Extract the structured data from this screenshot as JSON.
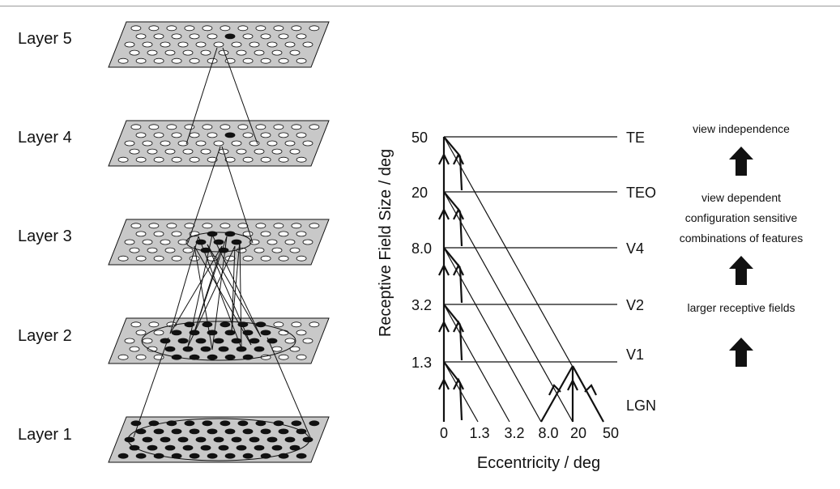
{
  "layers": [
    {
      "label": "Layer 5"
    },
    {
      "label": "Layer 4"
    },
    {
      "label": "Layer 3"
    },
    {
      "label": "Layer 2"
    },
    {
      "label": "Layer 1"
    }
  ],
  "hierarchy": {
    "y_axis_title": "Receptive Field Size / deg",
    "x_axis_title": "Eccentricity / deg",
    "y_ticks": [
      "50",
      "20",
      "8.0",
      "3.2",
      "1.3"
    ],
    "x_ticks": [
      "0",
      "1.3",
      "3.2",
      "8.0",
      "20",
      "50"
    ],
    "areas": [
      "TE",
      "TEO",
      "V4",
      "V2",
      "V1",
      "LGN"
    ]
  },
  "annotations": {
    "top": "view independence",
    "middle": [
      "view dependent",
      "configuration sensitive",
      "combinations of features"
    ],
    "bottom": "larger receptive fields"
  },
  "colors": {
    "plate_fill": "#c8c8c8",
    "ink": "#111111"
  }
}
